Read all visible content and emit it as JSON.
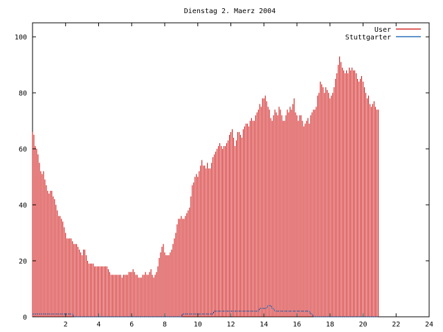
{
  "chart_data": {
    "type": "bar",
    "title": "Dienstag 2. Maerz 2004",
    "xlabel": "",
    "ylabel": "",
    "xlim": [
      0,
      24
    ],
    "ylim": [
      0,
      105
    ],
    "xticks": [
      2,
      4,
      6,
      8,
      10,
      12,
      14,
      16,
      18,
      20,
      22,
      24
    ],
    "yticks": [
      0,
      20,
      40,
      60,
      80,
      100
    ],
    "grid": false,
    "legend_position": "top-right",
    "series": [
      {
        "name": "User",
        "color": "#cc0000",
        "style": "impulses",
        "x_step_hours": 0.08333,
        "values": [
          66,
          65,
          61,
          60,
          58,
          55,
          52,
          51,
          52,
          49,
          47,
          45,
          44,
          45,
          45,
          43,
          42,
          40,
          38,
          36,
          36,
          35,
          34,
          32,
          30,
          28,
          28,
          28,
          28,
          27,
          26,
          26,
          26,
          25,
          24,
          23,
          22,
          24,
          24,
          22,
          20,
          19,
          19,
          19,
          19,
          18,
          18,
          18,
          18,
          18,
          18,
          18,
          18,
          18,
          18,
          17,
          16,
          15,
          15,
          15,
          15,
          15,
          15,
          15,
          15,
          14,
          15,
          15,
          15,
          15,
          16,
          16,
          16,
          17,
          16,
          15,
          15,
          14,
          14,
          14,
          15,
          15,
          16,
          15,
          15,
          16,
          17,
          15,
          14,
          15,
          16,
          18,
          21,
          23,
          25,
          26,
          23,
          22,
          22,
          22,
          23,
          24,
          26,
          28,
          30,
          33,
          35,
          35,
          36,
          35,
          35,
          36,
          37,
          38,
          39,
          43,
          47,
          48,
          50,
          51,
          50,
          52,
          54,
          56,
          54,
          54,
          53,
          55,
          53,
          53,
          55,
          57,
          58,
          59,
          60,
          61,
          62,
          61,
          60,
          61,
          61,
          62,
          63,
          65,
          66,
          67,
          64,
          61,
          63,
          66,
          66,
          65,
          64,
          67,
          68,
          69,
          69,
          68,
          70,
          71,
          70,
          70,
          72,
          73,
          74,
          76,
          75,
          78,
          78,
          79,
          77,
          75,
          74,
          71,
          70,
          72,
          74,
          73,
          72,
          75,
          74,
          72,
          70,
          70,
          72,
          74,
          73,
          75,
          74,
          76,
          78,
          73,
          72,
          70,
          72,
          72,
          70,
          68,
          69,
          70,
          71,
          69,
          72,
          73,
          74,
          74,
          75,
          79,
          80,
          84,
          83,
          82,
          80,
          82,
          81,
          80,
          78,
          79,
          80,
          82,
          85,
          87,
          90,
          93,
          91,
          89,
          88,
          87,
          88,
          87,
          89,
          88,
          89,
          88,
          88,
          87,
          85,
          84,
          85,
          86,
          84,
          82,
          80,
          78,
          79,
          76,
          75,
          76,
          77,
          75,
          74,
          74
        ]
      },
      {
        "name": "Stuttgarter",
        "color": "#0055aa",
        "style": "line",
        "x_step_hours": 0.08333,
        "values": [
          1,
          1,
          1,
          1,
          1,
          1,
          1,
          1,
          1,
          1,
          1,
          1,
          1,
          1,
          1,
          1,
          1,
          1,
          1,
          1,
          1,
          1,
          1,
          1,
          1,
          1,
          1,
          1,
          1,
          1,
          0,
          0,
          0,
          0,
          0,
          0,
          0,
          0,
          0,
          0,
          0,
          0,
          0,
          0,
          0,
          0,
          0,
          0,
          0,
          0,
          0,
          0,
          0,
          0,
          0,
          0,
          0,
          0,
          0,
          0,
          0,
          0,
          0,
          0,
          0,
          0,
          0,
          0,
          0,
          0,
          0,
          0,
          0,
          0,
          0,
          0,
          0,
          0,
          0,
          0,
          0,
          0,
          0,
          0,
          0,
          0,
          0,
          0,
          0,
          0,
          0,
          0,
          0,
          0,
          0,
          0,
          0,
          0,
          0,
          0,
          0,
          0,
          0,
          0,
          0,
          0,
          0,
          0,
          0,
          1,
          1,
          1,
          1,
          1,
          1,
          1,
          1,
          1,
          1,
          1,
          1,
          1,
          1,
          1,
          1,
          1,
          1,
          1,
          1,
          1,
          1,
          1,
          2,
          2,
          2,
          2,
          2,
          2,
          2,
          2,
          2,
          2,
          2,
          2,
          2,
          2,
          2,
          2,
          2,
          2,
          2,
          2,
          2,
          2,
          2,
          2,
          2,
          2,
          2,
          2,
          2,
          2,
          2,
          2,
          2,
          3,
          3,
          3,
          3,
          3,
          3,
          4,
          4,
          4,
          3,
          3,
          2,
          2,
          2,
          2,
          2,
          2,
          2,
          2,
          2,
          2,
          2,
          2,
          2,
          2,
          2,
          2,
          2,
          2,
          2,
          2,
          2,
          2,
          2,
          2,
          2,
          2,
          1,
          1,
          0,
          0,
          0,
          0,
          0,
          0,
          0,
          0,
          0,
          0,
          0,
          0,
          0,
          0,
          0,
          0,
          0,
          0,
          0,
          0,
          0,
          0,
          0,
          0,
          0,
          0,
          0,
          0,
          0,
          0,
          0,
          0,
          0,
          0,
          0,
          0,
          0,
          0,
          0,
          0,
          0,
          0,
          0,
          0,
          0,
          0,
          0,
          0
        ]
      }
    ]
  }
}
